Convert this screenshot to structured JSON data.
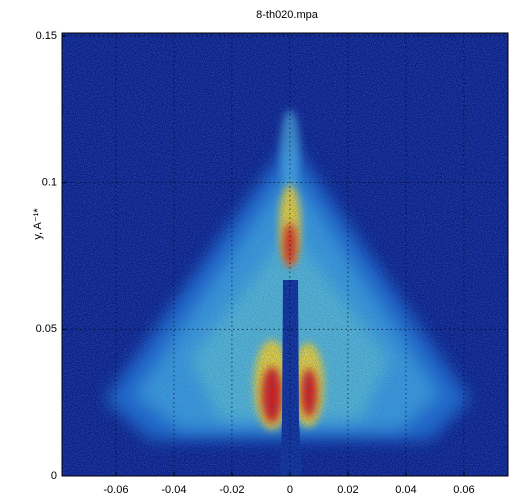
{
  "chart_data": {
    "type": "heatmap",
    "title": "8-th020.mpa",
    "ylabel": "y, A⁻¹*",
    "xlim": [
      -0.0786,
      0.0752
    ],
    "ylim": [
      0,
      0.151
    ],
    "xticks": [
      -0.06,
      -0.04,
      -0.02,
      0,
      0.02,
      0.04,
      0.06
    ],
    "yticks": [
      0,
      0.05,
      0.1,
      0.15
    ],
    "grid": true,
    "background": "#0c1f86"
  }
}
